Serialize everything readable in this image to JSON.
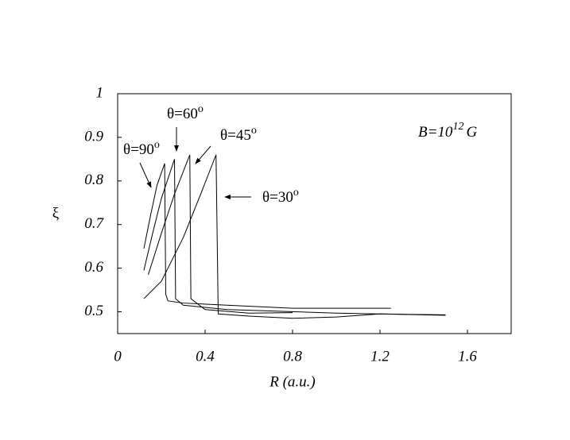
{
  "chart_data": {
    "type": "line",
    "x_label": "R (a.u.)",
    "y_label": "ξ",
    "xlim": [
      0,
      1.8
    ],
    "ylim": [
      0.45,
      1
    ],
    "xticks": [
      0,
      0.4,
      0.8,
      1.2,
      1.6
    ],
    "yticks": [
      0.5,
      0.6,
      0.7,
      0.8,
      0.9,
      1
    ],
    "annotation": {
      "text": "B=10",
      "sup": "12",
      "unit": "G"
    },
    "series": [
      {
        "name": "θ=90",
        "name_sup": "o",
        "color": "#000000",
        "x": [
          0.12,
          0.15,
          0.18,
          0.215,
          0.22,
          0.23,
          0.3,
          0.5,
          0.8,
          1.25
        ],
        "values": [
          0.645,
          0.72,
          0.79,
          0.84,
          0.54,
          0.525,
          0.52,
          0.515,
          0.508,
          0.508
        ]
      },
      {
        "name": "θ=60",
        "name_sup": "o",
        "color": "#000000",
        "x": [
          0.12,
          0.16,
          0.2,
          0.26,
          0.265,
          0.3,
          0.5,
          1.0,
          1.5
        ],
        "values": [
          0.595,
          0.68,
          0.76,
          0.85,
          0.53,
          0.515,
          0.505,
          0.497,
          0.492
        ]
      },
      {
        "name": "θ=45",
        "name_sup": "o",
        "color": "#000000",
        "x": [
          0.14,
          0.2,
          0.26,
          0.33,
          0.335,
          0.4,
          0.6,
          0.8
        ],
        "values": [
          0.585,
          0.68,
          0.77,
          0.86,
          0.53,
          0.505,
          0.497,
          0.498
        ]
      },
      {
        "name": "θ=30",
        "name_sup": "o",
        "color": "#000000",
        "x": [
          0.12,
          0.2,
          0.3,
          0.38,
          0.45,
          0.46,
          0.6,
          0.8,
          1.0,
          1.2,
          1.5
        ],
        "values": [
          0.53,
          0.57,
          0.67,
          0.77,
          0.86,
          0.495,
          0.49,
          0.485,
          0.488,
          0.495,
          0.493
        ]
      }
    ]
  }
}
